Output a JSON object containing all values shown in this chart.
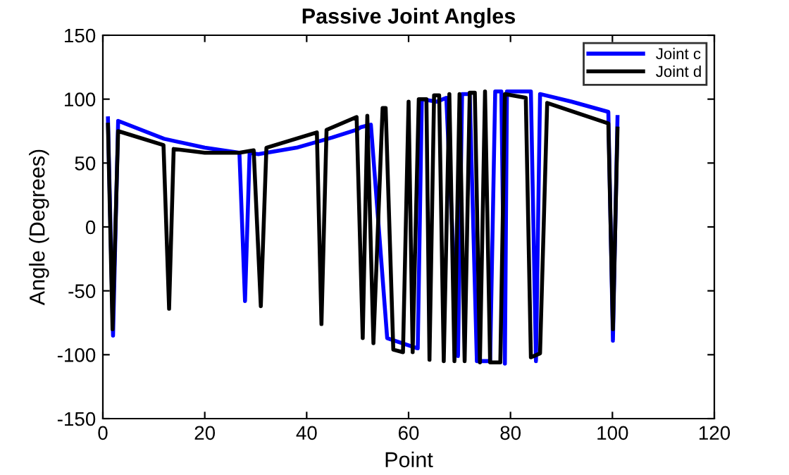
{
  "chart_data": {
    "type": "line",
    "title": "Passive Joint Angles",
    "xlabel": "Point",
    "ylabel": "Angle (Degrees)",
    "xlim": [
      0,
      120
    ],
    "xticks": [
      0,
      20,
      40,
      60,
      80,
      100,
      120
    ],
    "ylim": [
      -150,
      150
    ],
    "yticks": [
      -150,
      -100,
      -50,
      0,
      50,
      100,
      150
    ],
    "grid": false,
    "legend": "top right",
    "marker": "none",
    "line_style": "solid",
    "series": [
      {
        "name": "Joint c",
        "color": "#0000ff",
        "x": [
          1,
          2,
          3,
          12,
          20,
          26.8,
          27.9,
          28.8,
          30.5,
          38,
          45,
          49.8,
          50.6,
          52.6,
          55.8,
          61.8,
          62.6,
          65.5,
          67.4,
          69.7,
          70.5,
          72,
          73.4,
          76,
          77,
          78.2,
          78.9,
          79.3,
          84,
          85,
          85.8,
          92,
          99.2,
          100.1,
          101
        ],
        "values": [
          85,
          -85,
          83,
          69,
          62,
          58,
          -58,
          58,
          57,
          62,
          70,
          76,
          78,
          80,
          -87,
          -95,
          100,
          98,
          101,
          -101,
          104,
          104,
          -105,
          -105,
          106,
          106,
          -107,
          106,
          106,
          -105,
          104,
          98,
          90,
          -89,
          86
        ]
      },
      {
        "name": "Joint d",
        "color": "#000000",
        "x": [
          1,
          1.9,
          3,
          11.9,
          13,
          13.9,
          20,
          26.8,
          29.6,
          31,
          32.1,
          42,
          42.9,
          43.9,
          49.8,
          51,
          51.9,
          53.1,
          54.9,
          55.5,
          57,
          58.9,
          60,
          60.8,
          62,
          63.5,
          64.1,
          65,
          66,
          66.9,
          68,
          69,
          70,
          71,
          72,
          73,
          74,
          75,
          76,
          78,
          78.9,
          83,
          84,
          85.8,
          87.2,
          99.2,
          100.1,
          101
        ],
        "values": [
          80,
          -80,
          75,
          64,
          -64,
          61,
          58,
          58,
          60,
          -62,
          62,
          74,
          -76,
          76,
          86,
          -87,
          87,
          -91,
          93,
          93,
          -96,
          -98,
          98,
          -98,
          100,
          100,
          -104,
          103,
          103,
          -105,
          104,
          -105,
          104,
          -105,
          105,
          105,
          -106,
          106,
          -106,
          -106,
          104,
          101,
          -102,
          -99,
          97,
          81,
          -80,
          77
        ]
      }
    ]
  }
}
